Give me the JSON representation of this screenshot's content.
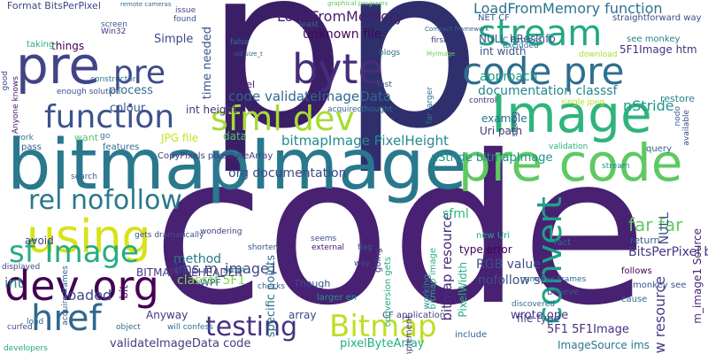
{
  "words": [
    {
      "text": "code",
      "color": "#482173"
    },
    {
      "text": "p",
      "color": "#3b1f66"
    },
    {
      "text": "p",
      "color": "#2f2f6e"
    },
    {
      "text": "bitmapImage",
      "color": "#29788e"
    },
    {
      "text": "Image",
      "color": "#2fb47c"
    },
    {
      "text": "pre code",
      "color": "#5ec962"
    },
    {
      "text": "code pre",
      "color": "#2d6e8e"
    },
    {
      "text": "pre",
      "color": "#414487"
    },
    {
      "text": "pre",
      "color": "#3e4a89"
    },
    {
      "text": "byte",
      "color": "#472d7b"
    },
    {
      "text": "stream",
      "color": "#22a884"
    },
    {
      "text": "function",
      "color": "#3b528b"
    },
    {
      "text": "sfml dev",
      "color": "#a8db34"
    },
    {
      "text": "using",
      "color": "#d8e219"
    },
    {
      "text": "rel nofollow",
      "color": "#2a788e"
    },
    {
      "text": "dev org",
      "color": "#440154"
    },
    {
      "text": "sf Image",
      "color": "#27ad81"
    },
    {
      "text": "href",
      "color": "#31688e"
    },
    {
      "text": "testing",
      "color": "#46327e"
    },
    {
      "text": "Bitmap",
      "color": "#bddf26"
    },
    {
      "text": "convert",
      "color": "#1fa187"
    },
    {
      "text": "LoadFromMemory function",
      "color": "#2c728e"
    },
    {
      "text": "LoadFromMemory",
      "color": "#481b6d"
    },
    {
      "text": "code validateImageData",
      "color": "#31678e"
    },
    {
      "text": "bitmapImage PixelHeight",
      "color": "#238a8d"
    },
    {
      "text": "org documentation",
      "color": "#3e4989"
    },
    {
      "text": "nStride bitmapImage",
      "color": "#20928c"
    },
    {
      "text": "unknown file",
      "color": "#450559"
    },
    {
      "text": "bitmap resource",
      "color": "#472a7a"
    },
    {
      "text": "specific points",
      "color": "#2c718e"
    },
    {
      "text": "far far",
      "color": "#63cb5f"
    },
    {
      "text": "new resource",
      "color": "#443b84"
    },
    {
      "text": "RGB value",
      "color": "#3b518b"
    },
    {
      "text": "documentation classsf",
      "color": "#25858e"
    },
    {
      "text": "Format BitsPerPixel",
      "color": "#404688"
    },
    {
      "text": "validateImageData code",
      "color": "#433d84"
    },
    {
      "text": "pixelByteArray",
      "color": "#25ac82"
    },
    {
      "text": "nofollow sf",
      "color": "#3d4e8a"
    },
    {
      "text": "5F1 5F1Image",
      "color": "#472f7d"
    },
    {
      "text": "ImageSource ims",
      "color": "#2a768e"
    },
    {
      "text": "loaded",
      "color": "#3c4f8a"
    },
    {
      "text": "time needed",
      "color": "#39558c"
    },
    {
      "text": "Simple",
      "color": "#3e4989"
    },
    {
      "text": "approach",
      "color": "#1fa088"
    },
    {
      "text": "5F1Image htm",
      "color": "#46307e"
    },
    {
      "text": "int width",
      "color": "#3a548c"
    },
    {
      "text": "NULL hResInfo",
      "color": "#3b528b"
    },
    {
      "text": "sfml",
      "color": "#31b57b"
    },
    {
      "text": "pixel",
      "color": "#481f70"
    },
    {
      "text": "ims m_image1",
      "color": "#3f4788"
    },
    {
      "text": "classsf 5F1",
      "color": "#7fd34e"
    },
    {
      "text": "method",
      "color": "#2a788e"
    },
    {
      "text": "avoid",
      "color": "#433e85"
    },
    {
      "text": "type error",
      "color": "#440154"
    },
    {
      "text": "BitsPerPixel byte",
      "color": "#453781"
    },
    {
      "text": "file type",
      "color": "#3e4a89"
    },
    {
      "text": "Uri path",
      "color": "#46327e"
    },
    {
      "text": "example",
      "color": "#2d708e"
    },
    {
      "text": "colour",
      "color": "#38588c"
    },
    {
      "text": "int height",
      "color": "#453581"
    },
    {
      "text": "JPG file",
      "color": "#c8e020"
    },
    {
      "text": "data",
      "color": "#52c569"
    },
    {
      "text": "process",
      "color": "#2f6c8e"
    },
    {
      "text": "nStride",
      "color": "#1f998a"
    },
    {
      "text": "int",
      "color": "#21918c"
    },
    {
      "text": "bit",
      "color": "#470d60"
    },
    {
      "text": "NULL",
      "color": "#3d4d8a"
    },
    {
      "text": "PixelWidth",
      "color": "#2ab07f"
    },
    {
      "text": "m_image1 Source",
      "color": "#482475"
    },
    {
      "text": "bitmap image",
      "color": "#29af7f"
    },
    {
      "text": "BITMAPFILEHEADER",
      "color": "#443a83"
    },
    {
      "text": "Though",
      "color": "#3d4e8a"
    },
    {
      "text": "WPF",
      "color": "#2e6e8e"
    },
    {
      "text": "Anyway",
      "color": "#46337f"
    },
    {
      "text": "array",
      "color": "#3f4889"
    },
    {
      "text": "want",
      "color": "#56c667"
    },
    {
      "text": "go",
      "color": "#2c728e"
    },
    {
      "text": "pass",
      "color": "#34618d"
    },
    {
      "text": "features",
      "color": "#2e6f8e"
    },
    {
      "text": "CopyPixels pixelByteArray",
      "color": "#433d84"
    },
    {
      "text": "screen",
      "color": "#355e8d"
    },
    {
      "text": "things",
      "color": "#440256"
    },
    {
      "text": "taking",
      "color": "#29af7f"
    },
    {
      "text": "issue",
      "color": "#414487"
    },
    {
      "text": "found",
      "color": "#3b528b"
    },
    {
      "text": "Win32",
      "color": "#46307e"
    },
    {
      "text": "NET CF",
      "color": "#3a548c"
    },
    {
      "text": "straightforward way",
      "color": "#3d4d8a"
    },
    {
      "text": "see monkey",
      "color": "#26828e"
    },
    {
      "text": "restore",
      "color": "#25848e"
    },
    {
      "text": "query",
      "color": "#33638d"
    },
    {
      "text": "return",
      "color": "#365c8d"
    },
    {
      "text": "follows",
      "color": "#440154"
    },
    {
      "text": "monkey see",
      "color": "#3b528b"
    },
    {
      "text": "cause",
      "color": "#2c738e"
    },
    {
      "text": "wrote one",
      "color": "#443983"
    },
    {
      "text": "new Uri",
      "color": "#20a386"
    },
    {
      "text": "fact",
      "color": "#2f6b8e"
    },
    {
      "text": "believe",
      "color": "#3a548c"
    },
    {
      "text": "CF application",
      "color": "#414487"
    },
    {
      "text": "include",
      "color": "#32658e"
    },
    {
      "text": "implement",
      "color": "#453882"
    },
    {
      "text": "larger en",
      "color": "#1f958b"
    },
    {
      "text": "checks",
      "color": "#355f8d"
    },
    {
      "text": "seems",
      "color": "#3c4f8a"
    },
    {
      "text": "external",
      "color": "#481668"
    },
    {
      "text": "way",
      "color": "#3f4889"
    },
    {
      "text": "flag",
      "color": "#38588c"
    },
    {
      "text": "going",
      "color": "#433e85"
    },
    {
      "text": "conversion gets",
      "color": "#25ab82"
    },
    {
      "text": "working",
      "color": "#21918c"
    },
    {
      "text": "will confess",
      "color": "#2c728e"
    },
    {
      "text": "object",
      "color": "#2e6d8e"
    },
    {
      "text": "curfed",
      "color": "#3b528b"
    },
    {
      "text": "load",
      "color": "#32648e"
    },
    {
      "text": "acquire frames",
      "color": "#33628d"
    },
    {
      "text": "displayed",
      "color": "#3f4788"
    },
    {
      "text": "gets dramatically",
      "color": "#3c508b"
    },
    {
      "text": "wondering",
      "color": "#453781"
    },
    {
      "text": "shorten",
      "color": "#39568c"
    },
    {
      "text": "script",
      "color": "#2a778e"
    },
    {
      "text": "search",
      "color": "#34608d"
    },
    {
      "text": "work",
      "color": "#2e6e8e"
    },
    {
      "text": "Anyone knows",
      "color": "#48186a"
    },
    {
      "text": "good",
      "color": "#3f4788"
    },
    {
      "text": "enough solution",
      "color": "#3b528b"
    },
    {
      "text": "constructor",
      "color": "#2a788e"
    },
    {
      "text": "fast",
      "color": "#3d4e8a"
    },
    {
      "text": "blogs",
      "color": "#31678e"
    },
    {
      "text": "first",
      "color": "#424086"
    },
    {
      "text": "false",
      "color": "#2e6e8e"
    },
    {
      "text": "acquired",
      "color": "#33638d"
    },
    {
      "text": "thought",
      "color": "#2d708e"
    },
    {
      "text": "far larger",
      "color": "#2c738e"
    },
    {
      "text": "control",
      "color": "#482878"
    },
    {
      "text": "single jpeg",
      "color": "#bade28"
    },
    {
      "text": "download",
      "color": "#addc30"
    },
    {
      "text": "excluded",
      "color": "#2a778e"
    },
    {
      "text": "stream",
      "color": "#21918c"
    },
    {
      "text": "validation",
      "color": "#2ab07f"
    },
    {
      "text": "strong",
      "color": "#3b528b"
    },
    {
      "text": "nodo",
      "color": "#37598c"
    },
    {
      "text": "available",
      "color": "#3e4989"
    },
    {
      "text": "discovered",
      "color": "#2d708e"
    },
    {
      "text": "cameras Frames",
      "color": "#31678e"
    },
    {
      "text": "developers",
      "color": "#22a785"
    },
    {
      "text": "least",
      "color": "#2f6b8e"
    },
    {
      "text": "remote cameras",
      "color": "#2e6e8e"
    },
    {
      "text": "graphical programs",
      "color": "#5ec962"
    },
    {
      "text": "Compact Framework",
      "color": "#34608d"
    },
    {
      "text": "MyImage",
      "color": "#6ccd5a"
    },
    {
      "text": "old size_t",
      "color": "#355f8d"
    },
    {
      "text": "C Express",
      "color": "#2d708e"
    },
    {
      "text": "fromStream",
      "color": "#2a788e"
    }
  ]
}
